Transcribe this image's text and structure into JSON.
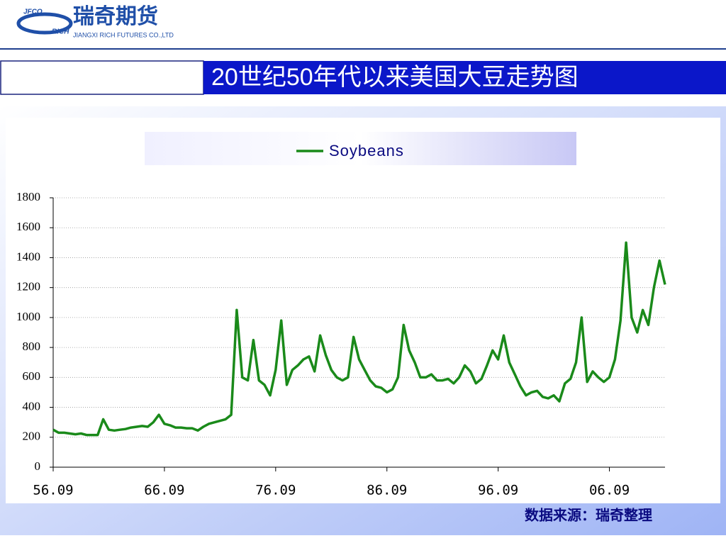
{
  "header": {
    "logo_mark_top": "JFCO",
    "logo_mark_bottom": "RICH",
    "logo_name": "瑞奇期货",
    "logo_sub": "JIANGXI RICH FUTURES CO.,LTD"
  },
  "slide_title": "20世纪50年代以来美国大豆走势图",
  "source": "数据来源：瑞奇整理",
  "chart_data": {
    "type": "line",
    "categories": [
      "56.09",
      null,
      null,
      null,
      null,
      null,
      null,
      null,
      null,
      null,
      null,
      null,
      null,
      null,
      null,
      null,
      null,
      null,
      null,
      null,
      "66.09",
      null,
      null,
      null,
      null,
      null,
      null,
      null,
      null,
      null,
      null,
      null,
      null,
      null,
      null,
      null,
      null,
      null,
      null,
      null,
      "76.09",
      null,
      null,
      null,
      null,
      null,
      null,
      null,
      null,
      null,
      null,
      null,
      null,
      null,
      null,
      null,
      null,
      null,
      null,
      null,
      "86.09",
      null,
      null,
      null,
      null,
      null,
      null,
      null,
      null,
      null,
      null,
      null,
      null,
      null,
      null,
      null,
      null,
      null,
      null,
      null,
      "96.09",
      null,
      null,
      null,
      null,
      null,
      null,
      null,
      null,
      null,
      null,
      null,
      null,
      null,
      null,
      null,
      null,
      null,
      null,
      null,
      "06.09",
      null,
      null,
      null,
      null,
      null,
      null,
      null,
      null,
      null,
      null
    ],
    "series": [
      {
        "name": "Soybeans",
        "color": "#1a8a1a",
        "values": [
          250,
          230,
          230,
          225,
          220,
          225,
          215,
          215,
          215,
          320,
          250,
          245,
          250,
          255,
          265,
          270,
          275,
          270,
          300,
          350,
          290,
          280,
          265,
          265,
          260,
          260,
          245,
          270,
          290,
          300,
          310,
          320,
          350,
          1050,
          600,
          580,
          850,
          580,
          550,
          480,
          650,
          980,
          550,
          650,
          680,
          720,
          740,
          640,
          880,
          750,
          650,
          600,
          580,
          600,
          870,
          720,
          650,
          580,
          540,
          530,
          500,
          520,
          600,
          950,
          780,
          700,
          600,
          600,
          620,
          580,
          580,
          590,
          560,
          600,
          680,
          640,
          560,
          590,
          680,
          780,
          720,
          880,
          700,
          620,
          540,
          480,
          500,
          510,
          470,
          460,
          480,
          440,
          560,
          590,
          700,
          1000,
          570,
          640,
          600,
          570,
          600,
          720,
          980,
          1500,
          1000,
          900,
          1050,
          950,
          1200,
          1380,
          1220
        ]
      }
    ],
    "ylim": [
      0,
      1800
    ],
    "yticks": [
      0,
      200,
      400,
      600,
      800,
      1000,
      1200,
      1400,
      1600,
      1800
    ],
    "grid": true
  }
}
